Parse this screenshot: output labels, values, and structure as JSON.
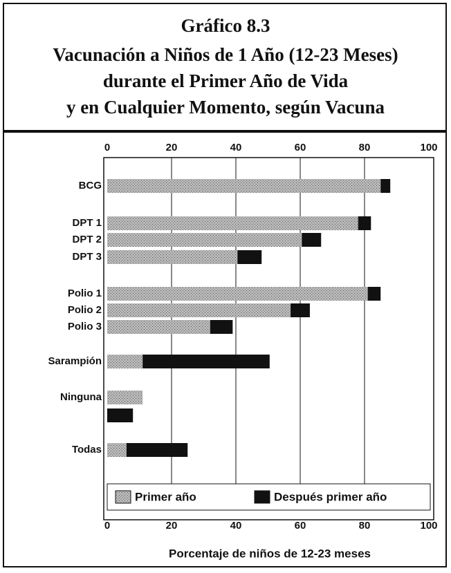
{
  "chart_data": {
    "type": "bar",
    "orientation": "horizontal",
    "stacked": true,
    "title": [
      "Gráfico 8.3",
      "Vacunación a Niños de 1 Año (12-23 Meses)",
      "durante el Primer Año de Vida",
      "y en Cualquier Momento, según Vacuna"
    ],
    "categories": [
      "BCG",
      "DPT 1",
      "DPT 2",
      "DPT 3",
      "Polio 1",
      "Polio 2",
      "Polio 3",
      "Sarampión",
      "Ninguna",
      null,
      "Todas"
    ],
    "series": [
      {
        "name": "Primer año",
        "color": "#a8a8a8",
        "values": [
          85,
          78,
          60.5,
          40.5,
          81,
          57,
          32,
          11,
          11,
          null,
          6
        ]
      },
      {
        "name": "Después primer año",
        "color": "#111111",
        "values": [
          3,
          4,
          6,
          7.5,
          4,
          6,
          7,
          39.5,
          null,
          8,
          19
        ]
      }
    ],
    "xlabel": "Porcentaje de niños de 12-23 meses",
    "xlim": [
      0,
      100
    ],
    "xticks": [
      0,
      20,
      40,
      60,
      80,
      100
    ],
    "grid": true,
    "legend": "bottom"
  }
}
